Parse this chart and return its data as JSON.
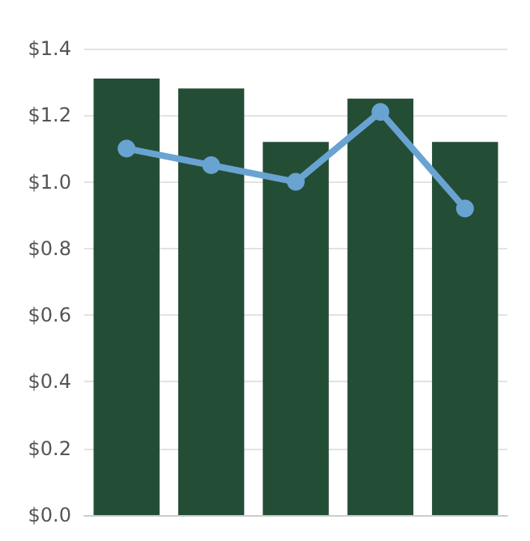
{
  "chart_data": {
    "type": "bar",
    "categories": [
      null,
      null,
      null,
      null,
      null
    ],
    "series": [
      {
        "color": "#244d36",
        "values": [
          1.31,
          1.28,
          1.12,
          1.25,
          1.12
        ]
      },
      {
        "type": "line",
        "color": "#69a3d2",
        "values": [
          1.1,
          1.05,
          1.0,
          1.21,
          0.92
        ]
      }
    ],
    "ylim": [
      0,
      1.4
    ],
    "yticks": [
      {
        "value": 0,
        "label": "$0.0"
      },
      {
        "value": 0.2,
        "label": "$0.2"
      },
      {
        "value": 0.4,
        "label": "$0.4"
      },
      {
        "value": 0.6,
        "label": "$0.6"
      },
      {
        "value": 0.8,
        "label": "$0.8"
      },
      {
        "value": 1.0,
        "label": "$1.0"
      },
      {
        "value": 1.2,
        "label": "$1.2"
      },
      {
        "value": 1.4,
        "label": "$1.4"
      }
    ],
    "grid": "y",
    "marker": "circle",
    "tick_labels": "y"
  }
}
